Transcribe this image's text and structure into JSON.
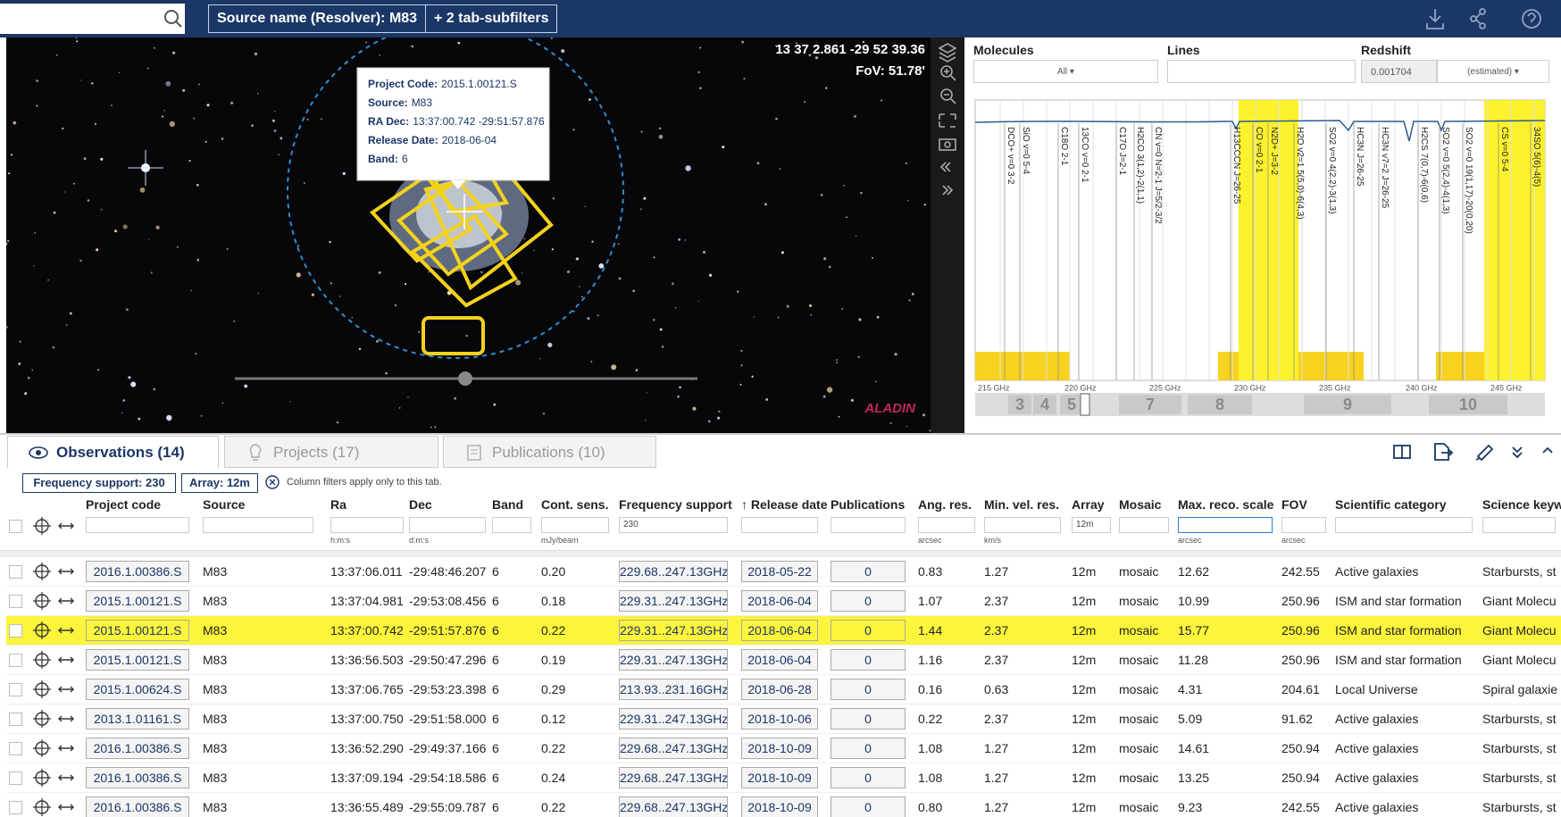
{
  "toolbar": {
    "filters": [
      "Source name (Resolver): M83",
      "+ 2 tab-subfilters"
    ]
  },
  "sky_view": {
    "coordinates": "13 37 2.861 -29 52 39.36",
    "fov": "FoV: 51.78'",
    "logo": "ALADIN",
    "tooltip": {
      "fields": [
        {
          "label": "Project Code:",
          "value": "2015.1.00121.S"
        },
        {
          "label": "Source:",
          "value": "M83"
        },
        {
          "label": "RA Dec:",
          "value": "13:37:00.742 -29:51:57.876"
        },
        {
          "label": "Release Date:",
          "value": "2018-06-04"
        },
        {
          "label": "Band:",
          "value": "6"
        }
      ]
    }
  },
  "spectrum": {
    "molecules": {
      "label": "Molecules",
      "value": "All"
    },
    "lines": {
      "label": "Lines"
    },
    "redshift": {
      "label": "Redshift",
      "value": "0.001704",
      "mode": "(estimated)"
    },
    "line_labels": [
      "DCO+ v=0 3-2",
      "SiO v=0 5-4",
      "C18O 2-1",
      "13CO v=0 2-1",
      "C17O J=2-1",
      "H2CO 3(1,2)-2(1,1)",
      "CN v=0 N=2-1 J=5/2-3/2",
      "H13CCCN J=26-25",
      "CO v=0 2-1",
      "N2D+ J=3-2",
      "H2O v2=1 5(5,0)-6(4,3)",
      "SO2 v=0 4(2,2)-3(1,3)",
      "HC3N J=26-25",
      "HC3N v7=2 J=26-25",
      "H2CS 7(0,7)-6(0,6)",
      "SO2 v=0 5(2,4)-4(1,3)",
      "SO2 v=0 19(1,17)-20(0,20)",
      "CS v=0 5-4",
      "34SO 5(6)-4(5)"
    ],
    "frequency_labels": [
      "215 GHz",
      "220 GHz",
      "225 GHz",
      "230 GHz",
      "235 GHz",
      "240 GHz",
      "245 GHz"
    ],
    "bands": [
      "3",
      "4",
      "5",
      "7",
      "8",
      "9",
      "10"
    ]
  },
  "tabs": [
    "Observations (14)",
    "Projects (17)",
    "Publications (10)"
  ],
  "filters": {
    "chips": [
      "Frequency support: 230",
      "Array: 12m"
    ],
    "note": "Column filters apply only to this tab."
  },
  "table": {
    "columns": [
      {
        "header": "Project code"
      },
      {
        "header": "Source"
      },
      {
        "header": "Ra",
        "unit": "h:m:s"
      },
      {
        "header": "Dec",
        "unit": "d:m:s"
      },
      {
        "header": "Band"
      },
      {
        "header": "Cont. sens.",
        "unit": "mJy/beam"
      },
      {
        "header": "Frequency support",
        "filter": "230"
      },
      {
        "header": "↑ Release date"
      },
      {
        "header": "Publications"
      },
      {
        "header": "Ang. res.",
        "unit": "arcsec"
      },
      {
        "header": "Min. vel. res.",
        "unit": "km/s"
      },
      {
        "header": "Array",
        "filter": "12m"
      },
      {
        "header": "Mosaic"
      },
      {
        "header": "Max. reco. scale",
        "unit": "arcsec"
      },
      {
        "header": "FOV",
        "unit": "arcsec"
      },
      {
        "header": "Scientific category"
      },
      {
        "header": "Science keyw"
      }
    ],
    "highlighted_row": 2,
    "rows": [
      [
        "2016.1.00386.S",
        "M83",
        "13:37:06.011",
        "-29:48:46.207",
        "6",
        "0.20",
        "229.68..247.13GHz",
        "2018-05-22",
        "0",
        "0.83",
        "1.27",
        "12m",
        "mosaic",
        "12.62",
        "242.55",
        "Active galaxies",
        "Starbursts, st"
      ],
      [
        "2015.1.00121.S",
        "M83",
        "13:37:04.981",
        "-29:53:08.456",
        "6",
        "0.18",
        "229.31..247.13GHz",
        "2018-06-04",
        "0",
        "1.07",
        "2.37",
        "12m",
        "mosaic",
        "10.99",
        "250.96",
        "ISM and star formation",
        "Giant Molecu"
      ],
      [
        "2015.1.00121.S",
        "M83",
        "13:37:00.742",
        "-29:51:57.876",
        "6",
        "0.22",
        "229.31..247.13GHz",
        "2018-06-04",
        "0",
        "1.44",
        "2.37",
        "12m",
        "mosaic",
        "15.77",
        "250.96",
        "ISM and star formation",
        "Giant Molecu"
      ],
      [
        "2015.1.00121.S",
        "M83",
        "13:36:56.503",
        "-29:50:47.296",
        "6",
        "0.19",
        "229.31..247.13GHz",
        "2018-06-04",
        "0",
        "1.16",
        "2.37",
        "12m",
        "mosaic",
        "11.28",
        "250.96",
        "ISM and star formation",
        "Giant Molecu"
      ],
      [
        "2015.1.00624.S",
        "M83",
        "13:37:06.765",
        "-29:53:23.398",
        "6",
        "0.29",
        "213.93..231.16GHz",
        "2018-06-28",
        "0",
        "0.16",
        "0.63",
        "12m",
        "mosaic",
        "4.31",
        "204.61",
        "Local Universe",
        "Spiral galaxie"
      ],
      [
        "2013.1.01161.S",
        "M83",
        "13:37:00.750",
        "-29:51:58.000",
        "6",
        "0.12",
        "229.31..247.13GHz",
        "2018-10-06",
        "0",
        "0.22",
        "2.37",
        "12m",
        "mosaic",
        "5.09",
        "91.62",
        "Active galaxies",
        "Starbursts, st"
      ],
      [
        "2016.1.00386.S",
        "M83",
        "13:36:52.290",
        "-29:49:37.166",
        "6",
        "0.22",
        "229.68..247.13GHz",
        "2018-10-09",
        "0",
        "1.08",
        "1.27",
        "12m",
        "mosaic",
        "14.61",
        "250.94",
        "Active galaxies",
        "Starbursts, st"
      ],
      [
        "2016.1.00386.S",
        "M83",
        "13:37:09.194",
        "-29:54:18.586",
        "6",
        "0.24",
        "229.68..247.13GHz",
        "2018-10-09",
        "0",
        "1.08",
        "1.27",
        "12m",
        "mosaic",
        "13.25",
        "250.94",
        "Active galaxies",
        "Starbursts, st"
      ],
      [
        "2016.1.00386.S",
        "M83",
        "13:36:55.489",
        "-29:55:09.787",
        "6",
        "0.22",
        "229.68..247.13GHz",
        "2018-10-09",
        "0",
        "0.80",
        "1.27",
        "12m",
        "mosaic",
        "9.23",
        "242.55",
        "Active galaxies",
        "Starbursts, st"
      ]
    ]
  }
}
